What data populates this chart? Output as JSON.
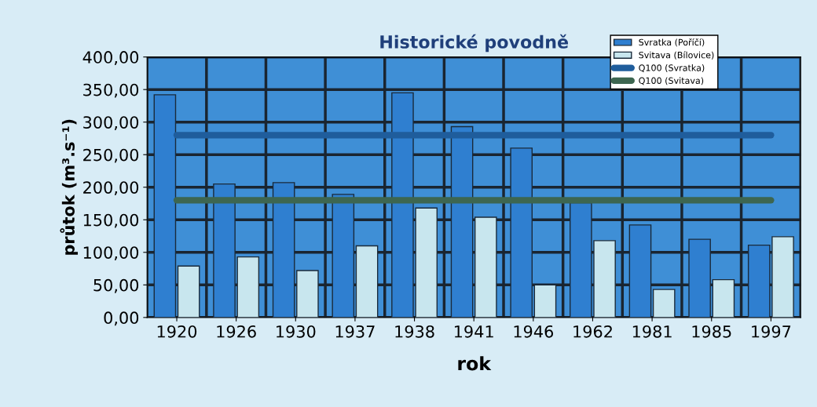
{
  "chart_data": {
    "type": "bar",
    "title": "Historické povodně",
    "xlabel": "rok",
    "ylabel": "průtok (m³.s⁻¹)",
    "categories": [
      "1920",
      "1926",
      "1930",
      "1937",
      "1938",
      "1941",
      "1946",
      "1962",
      "1981",
      "1985",
      "1997"
    ],
    "series": [
      {
        "name": "Svratka (Poříčí)",
        "color": "#2f7fd0",
        "values": [
          342,
          205,
          207,
          189,
          345,
          293,
          260,
          176,
          142,
          120,
          111
        ]
      },
      {
        "name": "Svitava (Bílovice)",
        "color": "#c8e6ee",
        "values": [
          79,
          93,
          72,
          110,
          168,
          154,
          50,
          118,
          43,
          58,
          124
        ]
      },
      {
        "name": "Q100 (Svratka)",
        "color": "#1f5d9c",
        "type": "line",
        "values": [
          280,
          280,
          280,
          280,
          280,
          280,
          280,
          280,
          280,
          280,
          280
        ]
      },
      {
        "name": "Q100 (Svitava)",
        "color": "#3d6650",
        "type": "line",
        "values": [
          180,
          180,
          180,
          180,
          180,
          180,
          180,
          180,
          180,
          180,
          180
        ]
      }
    ],
    "ylim": [
      0,
      400
    ],
    "yticks": [
      {
        "value": 0,
        "label": "0,00"
      },
      {
        "value": 50,
        "label": "50,00"
      },
      {
        "value": 100,
        "label": "100,00"
      },
      {
        "value": 150,
        "label": "150,00"
      },
      {
        "value": 200,
        "label": "200,00"
      },
      {
        "value": 250,
        "label": "250,00"
      },
      {
        "value": 300,
        "label": "300,00"
      },
      {
        "value": 350,
        "label": "350,00"
      },
      {
        "value": 400,
        "label": "400,00"
      }
    ],
    "grid": true,
    "legend": "top right"
  }
}
